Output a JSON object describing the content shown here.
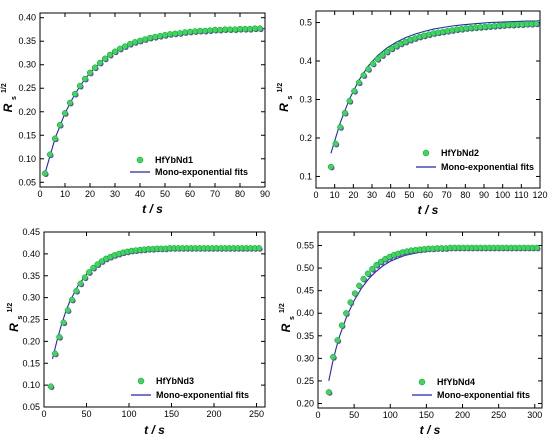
{
  "colors": {
    "marker_green": "#33dd55",
    "marker_edge": "#1a8a33",
    "fit_line": "#2222cc",
    "marker_back": "#8a2be2"
  },
  "chart_data": [
    {
      "type": "scatter",
      "xlabel": "t / s",
      "ylabel": {
        "main": "R",
        "sub": "s",
        "sup": "1/2"
      },
      "xlim": [
        0,
        90
      ],
      "ylim": [
        0.04,
        0.41
      ],
      "xticks": [
        "0",
        "10",
        "20",
        "30",
        "40",
        "50",
        "60",
        "70",
        "80",
        "90"
      ],
      "yticks": [
        "0.05",
        "0.10",
        "0.15",
        "0.20",
        "0.25",
        "0.30",
        "0.35",
        "0.40"
      ],
      "legend_position": "bottom-right",
      "series": [
        {
          "name": "HfYbNd1",
          "kind": "markers",
          "x": [
            2,
            4,
            6,
            8,
            10,
            12,
            14,
            16,
            18,
            20,
            22,
            24,
            26,
            28,
            30,
            32,
            34,
            36,
            38,
            40,
            42,
            44,
            46,
            48,
            50,
            52,
            54,
            56,
            58,
            60,
            62,
            64,
            66,
            68,
            70,
            72,
            74,
            76,
            78,
            80,
            82,
            84,
            86,
            88
          ],
          "y": [
            0.069,
            0.109,
            0.143,
            0.172,
            0.197,
            0.219,
            0.238,
            0.255,
            0.27,
            0.283,
            0.294,
            0.304,
            0.313,
            0.321,
            0.328,
            0.334,
            0.339,
            0.344,
            0.348,
            0.351,
            0.354,
            0.357,
            0.359,
            0.361,
            0.363,
            0.365,
            0.366,
            0.367,
            0.369,
            0.37,
            0.371,
            0.372,
            0.372,
            0.373,
            0.374,
            0.374,
            0.375,
            0.375,
            0.375,
            0.376,
            0.376,
            0.376,
            0.377,
            0.377
          ]
        },
        {
          "name": "Mono-exponential fits",
          "kind": "line",
          "x": [
            2,
            6,
            10,
            14,
            18,
            22,
            26,
            30,
            34,
            38,
            42,
            46,
            50,
            54,
            58,
            62,
            66,
            70,
            74,
            78,
            82,
            86,
            90
          ],
          "y": [
            0.069,
            0.143,
            0.197,
            0.238,
            0.27,
            0.294,
            0.313,
            0.328,
            0.339,
            0.348,
            0.354,
            0.359,
            0.363,
            0.366,
            0.369,
            0.371,
            0.372,
            0.374,
            0.375,
            0.375,
            0.376,
            0.377,
            0.377
          ]
        }
      ]
    },
    {
      "type": "scatter",
      "xlabel": "t / s",
      "ylabel": {
        "main": "R",
        "sub": "s",
        "sup": "1/2"
      },
      "xlim": [
        0,
        120
      ],
      "ylim": [
        0.07,
        0.53
      ],
      "xticks": [
        "0",
        "10",
        "20",
        "30",
        "40",
        "50",
        "60",
        "70",
        "80",
        "90",
        "100",
        "110",
        "120"
      ],
      "yticks": [
        "0.1",
        "0.2",
        "0.3",
        "0.4",
        "0.5"
      ],
      "legend_position": "bottom-right",
      "series": [
        {
          "name": "HfYbNd2",
          "kind": "markers",
          "x": [
            8,
            10.5,
            13,
            15.5,
            18,
            20.5,
            23,
            25.5,
            28,
            30.5,
            33,
            35.5,
            38,
            40.5,
            43,
            45.5,
            48,
            50.5,
            53,
            55.5,
            58,
            60.5,
            63,
            65.5,
            68,
            70.5,
            73,
            75.5,
            78,
            80.5,
            83,
            85.5,
            88,
            90.5,
            93,
            95.5,
            98,
            100.5,
            103,
            105.5,
            108,
            110.5,
            113,
            115.5,
            118
          ],
          "y": [
            0.125,
            0.185,
            0.228,
            0.265,
            0.296,
            0.322,
            0.344,
            0.363,
            0.379,
            0.393,
            0.405,
            0.415,
            0.424,
            0.432,
            0.439,
            0.445,
            0.45,
            0.455,
            0.459,
            0.463,
            0.466,
            0.469,
            0.472,
            0.474,
            0.476,
            0.478,
            0.48,
            0.482,
            0.483,
            0.485,
            0.486,
            0.487,
            0.488,
            0.489,
            0.49,
            0.491,
            0.492,
            0.493,
            0.494,
            0.494,
            0.495,
            0.495,
            0.496,
            0.496,
            0.497
          ]
        },
        {
          "name": "Mono-exponential fits",
          "kind": "line",
          "x": [
            8,
            13,
            18,
            23,
            28,
            33,
            38,
            43,
            48,
            53,
            58,
            63,
            68,
            73,
            78,
            83,
            88,
            93,
            98,
            103,
            108,
            113,
            118,
            120
          ],
          "y": [
            0.16,
            0.24,
            0.302,
            0.35,
            0.387,
            0.414,
            0.434,
            0.449,
            0.461,
            0.47,
            0.477,
            0.483,
            0.487,
            0.491,
            0.494,
            0.496,
            0.498,
            0.5,
            0.501,
            0.502,
            0.503,
            0.504,
            0.504,
            0.505
          ]
        }
      ]
    },
    {
      "type": "scatter",
      "xlabel": "t / s",
      "ylabel": {
        "main": "R",
        "sub": "s",
        "sup": "1/2"
      },
      "xlim": [
        0,
        260
      ],
      "ylim": [
        0.05,
        0.45
      ],
      "xticks": [
        "0",
        "50",
        "100",
        "150",
        "200",
        "250"
      ],
      "yticks": [
        "0.05",
        "0.10",
        "0.15",
        "0.20",
        "0.25",
        "0.30",
        "0.35",
        "0.40",
        "0.45"
      ],
      "legend_position": "bottom-right",
      "series": [
        {
          "name": "HfYbNd3",
          "kind": "markers",
          "x": [
            8,
            13,
            18,
            23,
            28,
            33,
            38,
            43,
            48,
            53,
            58,
            63,
            68,
            73,
            78,
            83,
            88,
            93,
            98,
            103,
            108,
            113,
            118,
            123,
            128,
            133,
            138,
            143,
            148,
            153,
            158,
            163,
            168,
            173,
            178,
            183,
            188,
            193,
            198,
            203,
            208,
            213,
            218,
            223,
            228,
            233,
            238,
            243,
            248,
            253
          ],
          "y": [
            0.097,
            0.172,
            0.21,
            0.243,
            0.271,
            0.295,
            0.315,
            0.332,
            0.346,
            0.358,
            0.368,
            0.376,
            0.383,
            0.389,
            0.393,
            0.397,
            0.4,
            0.403,
            0.405,
            0.407,
            0.408,
            0.409,
            0.41,
            0.411,
            0.411,
            0.412,
            0.412,
            0.412,
            0.413,
            0.413,
            0.413,
            0.413,
            0.413,
            0.413,
            0.413,
            0.413,
            0.413,
            0.413,
            0.413,
            0.413,
            0.413,
            0.413,
            0.413,
            0.413,
            0.413,
            0.413,
            0.413,
            0.413,
            0.413,
            0.413
          ]
        },
        {
          "name": "Mono-exponential fits",
          "kind": "line",
          "x": [
            10,
            15,
            20,
            25,
            30,
            40,
            50,
            60,
            70,
            80,
            90,
            100,
            110,
            120,
            140,
            160,
            180,
            200,
            220,
            240,
            255
          ],
          "y": [
            0.16,
            0.2,
            0.235,
            0.265,
            0.29,
            0.327,
            0.353,
            0.371,
            0.384,
            0.393,
            0.399,
            0.403,
            0.406,
            0.408,
            0.41,
            0.411,
            0.411,
            0.411,
            0.411,
            0.411,
            0.411
          ]
        }
      ]
    },
    {
      "type": "scatter",
      "xlabel": "t / s",
      "ylabel": {
        "main": "R",
        "sub": "s",
        "sup": "1/2"
      },
      "xlim": [
        0,
        310
      ],
      "ylim": [
        0.19,
        0.58
      ],
      "xticks": [
        "0",
        "50",
        "100",
        "150",
        "200",
        "250",
        "300"
      ],
      "yticks": [
        "0.20",
        "0.25",
        "0.30",
        "0.35",
        "0.40",
        "0.45",
        "0.50",
        "0.55"
      ],
      "legend_position": "bottom-right",
      "series": [
        {
          "name": "HfYbNd4",
          "kind": "markers",
          "x": [
            15,
            21,
            27,
            33,
            39,
            45,
            51,
            57,
            63,
            69,
            75,
            81,
            87,
            93,
            99,
            105,
            111,
            117,
            123,
            129,
            135,
            141,
            147,
            153,
            159,
            165,
            171,
            177,
            183,
            189,
            195,
            201,
            207,
            213,
            219,
            225,
            231,
            237,
            243,
            249,
            255,
            261,
            267,
            273,
            279,
            285,
            291,
            297,
            303
          ],
          "y": [
            0.225,
            0.303,
            0.34,
            0.373,
            0.4,
            0.424,
            0.444,
            0.461,
            0.476,
            0.488,
            0.498,
            0.507,
            0.514,
            0.52,
            0.525,
            0.529,
            0.532,
            0.535,
            0.537,
            0.539,
            0.54,
            0.541,
            0.542,
            0.543,
            0.543,
            0.544,
            0.544,
            0.544,
            0.545,
            0.545,
            0.545,
            0.545,
            0.545,
            0.545,
            0.545,
            0.545,
            0.545,
            0.545,
            0.545,
            0.545,
            0.545,
            0.545,
            0.545,
            0.545,
            0.545,
            0.545,
            0.545,
            0.545,
            0.545
          ]
        },
        {
          "name": "Mono-exponential fits",
          "kind": "line",
          "x": [
            15,
            20,
            25,
            30,
            40,
            50,
            60,
            70,
            80,
            90,
            100,
            110,
            120,
            140,
            160,
            180,
            200,
            230,
            260,
            290,
            305
          ],
          "y": [
            0.25,
            0.29,
            0.322,
            0.35,
            0.394,
            0.428,
            0.455,
            0.476,
            0.492,
            0.505,
            0.515,
            0.522,
            0.528,
            0.535,
            0.539,
            0.541,
            0.542,
            0.543,
            0.543,
            0.543,
            0.543
          ]
        }
      ]
    }
  ]
}
